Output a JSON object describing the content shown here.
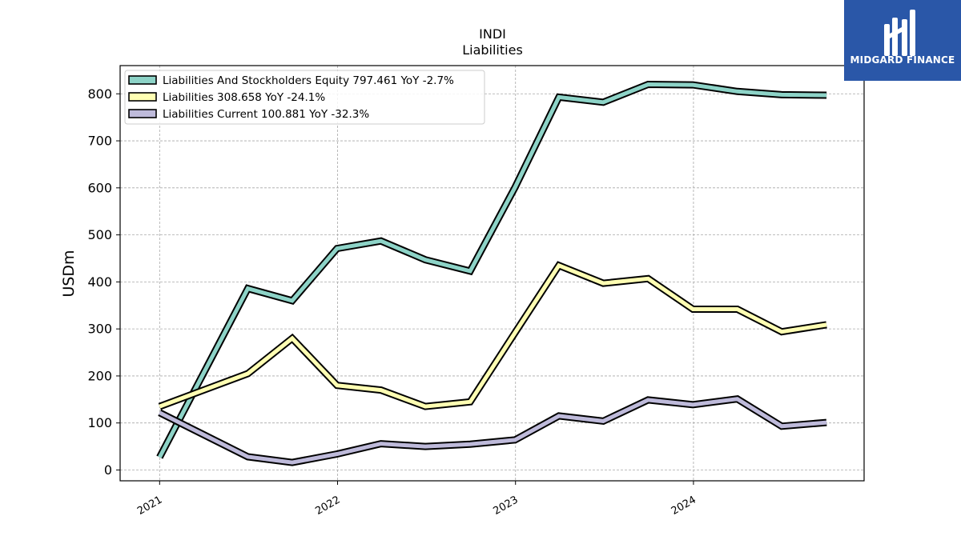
{
  "chart_data": {
    "type": "line",
    "title": "INDI",
    "subtitle": "Liabilities",
    "ylabel": "USDm",
    "xlabel": "",
    "ylim": [
      -23,
      860
    ],
    "xlim": [
      "2020-10-12",
      "2024-12-16"
    ],
    "yticks": [
      0,
      100,
      200,
      300,
      400,
      500,
      600,
      700,
      800
    ],
    "xticks": [
      {
        "label": "2021",
        "date": "2021-01-01"
      },
      {
        "label": "2022",
        "date": "2022-01-01"
      },
      {
        "label": "2023",
        "date": "2023-01-01"
      },
      {
        "label": "2024",
        "date": "2024-01-01"
      }
    ],
    "grid": true,
    "legend_position": "upper-left",
    "x": [
      "2021-01-01",
      "2021-07-01",
      "2021-09-30",
      "2021-12-31",
      "2022-03-31",
      "2022-06-30",
      "2022-09-30",
      "2022-12-31",
      "2023-03-31",
      "2023-06-30",
      "2023-09-30",
      "2023-12-31",
      "2024-03-31",
      "2024-06-30",
      "2024-09-30"
    ],
    "series": [
      {
        "name": "Liabilities And Stockholders Equity",
        "legend": "Liabilities And Stockholders Equity  797.461 YoY -2.7%",
        "color": "#8dd3c7",
        "values": [
          27,
          386,
          360,
          471,
          487,
          447,
          423,
          601,
          793,
          782,
          820,
          819,
          805,
          798,
          797
        ]
      },
      {
        "name": "Liabilities",
        "legend": "Liabilities  308.658 YoY -24.1%",
        "color": "#ffffb3",
        "values": [
          135,
          205,
          280,
          180,
          170,
          135,
          145,
          292,
          435,
          397,
          407,
          342,
          342,
          294,
          309
        ]
      },
      {
        "name": "Liabilities Current",
        "legend": "Liabilities Current  100.881 YoY -32.3%",
        "color": "#bebada",
        "values": [
          122,
          28,
          16,
          34,
          56,
          50,
          55,
          64,
          115,
          104,
          149,
          139,
          151,
          93,
          101
        ]
      }
    ]
  },
  "logo": {
    "text": "MIDGARD FINANCE"
  }
}
